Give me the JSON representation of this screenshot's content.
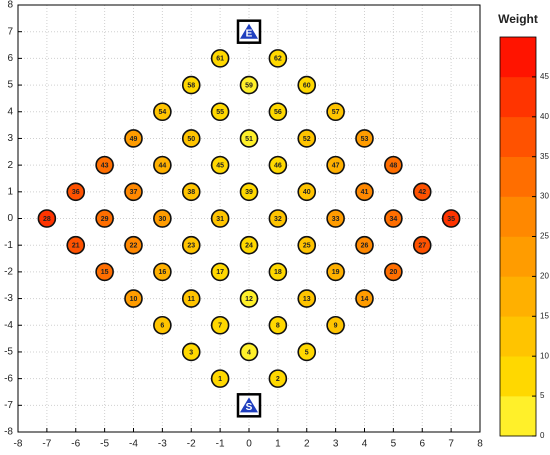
{
  "chart_data": {
    "type": "scatter",
    "xlim": [
      -8,
      8
    ],
    "ylim": [
      -8,
      8
    ],
    "xticks": [
      -8,
      -7,
      -6,
      -5,
      -4,
      -3,
      -2,
      -1,
      0,
      1,
      2,
      3,
      4,
      5,
      6,
      7,
      8
    ],
    "yticks": [
      -8,
      -7,
      -6,
      -5,
      -4,
      -3,
      -2,
      -1,
      0,
      1,
      2,
      3,
      4,
      5,
      6,
      7,
      8
    ],
    "grid": true,
    "nodes": [
      {
        "id": 1,
        "x": -1,
        "y": -6,
        "weight": 8
      },
      {
        "id": 2,
        "x": 1,
        "y": -6,
        "weight": 8
      },
      {
        "id": 3,
        "x": -2,
        "y": -5,
        "weight": 9
      },
      {
        "id": 4,
        "x": 0,
        "y": -5,
        "weight": 3
      },
      {
        "id": 5,
        "x": 2,
        "y": -5,
        "weight": 9
      },
      {
        "id": 6,
        "x": -3,
        "y": -4,
        "weight": 14
      },
      {
        "id": 7,
        "x": -1,
        "y": -4,
        "weight": 6
      },
      {
        "id": 8,
        "x": 1,
        "y": -4,
        "weight": 6
      },
      {
        "id": 9,
        "x": 3,
        "y": -4,
        "weight": 14
      },
      {
        "id": 10,
        "x": -4,
        "y": -3,
        "weight": 20
      },
      {
        "id": 11,
        "x": -2,
        "y": -3,
        "weight": 12
      },
      {
        "id": 12,
        "x": 0,
        "y": -3,
        "weight": 3
      },
      {
        "id": 13,
        "x": 2,
        "y": -3,
        "weight": 12
      },
      {
        "id": 14,
        "x": 4,
        "y": -3,
        "weight": 20
      },
      {
        "id": 15,
        "x": -5,
        "y": -2,
        "weight": 30
      },
      {
        "id": 16,
        "x": -3,
        "y": -2,
        "weight": 18
      },
      {
        "id": 17,
        "x": -1,
        "y": -2,
        "weight": 9
      },
      {
        "id": 18,
        "x": 1,
        "y": -2,
        "weight": 9
      },
      {
        "id": 19,
        "x": 3,
        "y": -2,
        "weight": 18
      },
      {
        "id": 20,
        "x": 5,
        "y": -2,
        "weight": 30
      },
      {
        "id": 21,
        "x": -6,
        "y": -1,
        "weight": 38
      },
      {
        "id": 22,
        "x": -4,
        "y": -1,
        "weight": 25
      },
      {
        "id": 23,
        "x": -2,
        "y": -1,
        "weight": 14
      },
      {
        "id": 24,
        "x": 0,
        "y": -1,
        "weight": 6
      },
      {
        "id": 25,
        "x": 2,
        "y": -1,
        "weight": 14
      },
      {
        "id": 26,
        "x": 4,
        "y": -1,
        "weight": 25
      },
      {
        "id": 27,
        "x": 6,
        "y": -1,
        "weight": 38
      },
      {
        "id": 28,
        "x": -7,
        "y": 0,
        "weight": 44
      },
      {
        "id": 29,
        "x": -5,
        "y": 0,
        "weight": 33
      },
      {
        "id": 30,
        "x": -3,
        "y": 0,
        "weight": 22
      },
      {
        "id": 31,
        "x": -1,
        "y": 0,
        "weight": 12
      },
      {
        "id": 32,
        "x": 1,
        "y": 0,
        "weight": 12
      },
      {
        "id": 33,
        "x": 3,
        "y": 0,
        "weight": 22
      },
      {
        "id": 34,
        "x": 5,
        "y": 0,
        "weight": 33
      },
      {
        "id": 35,
        "x": 7,
        "y": 0,
        "weight": 44
      },
      {
        "id": 36,
        "x": -6,
        "y": 1,
        "weight": 38
      },
      {
        "id": 37,
        "x": -4,
        "y": 1,
        "weight": 25
      },
      {
        "id": 38,
        "x": -2,
        "y": 1,
        "weight": 14
      },
      {
        "id": 39,
        "x": 0,
        "y": 1,
        "weight": 6
      },
      {
        "id": 40,
        "x": 2,
        "y": 1,
        "weight": 14
      },
      {
        "id": 41,
        "x": 4,
        "y": 1,
        "weight": 25
      },
      {
        "id": 42,
        "x": 6,
        "y": 1,
        "weight": 38
      },
      {
        "id": 43,
        "x": -5,
        "y": 2,
        "weight": 30
      },
      {
        "id": 44,
        "x": -3,
        "y": 2,
        "weight": 18
      },
      {
        "id": 45,
        "x": -1,
        "y": 2,
        "weight": 9
      },
      {
        "id": 46,
        "x": 1,
        "y": 2,
        "weight": 9
      },
      {
        "id": 47,
        "x": 3,
        "y": 2,
        "weight": 18
      },
      {
        "id": 48,
        "x": 5,
        "y": 2,
        "weight": 30
      },
      {
        "id": 49,
        "x": -4,
        "y": 3,
        "weight": 20
      },
      {
        "id": 50,
        "x": -2,
        "y": 3,
        "weight": 12
      },
      {
        "id": 51,
        "x": 0,
        "y": 3,
        "weight": 3
      },
      {
        "id": 52,
        "x": 2,
        "y": 3,
        "weight": 12
      },
      {
        "id": 53,
        "x": 4,
        "y": 3,
        "weight": 20
      },
      {
        "id": 54,
        "x": -3,
        "y": 4,
        "weight": 14
      },
      {
        "id": 55,
        "x": -1,
        "y": 4,
        "weight": 6
      },
      {
        "id": 56,
        "x": 1,
        "y": 4,
        "weight": 6
      },
      {
        "id": 57,
        "x": 3,
        "y": 4,
        "weight": 14
      },
      {
        "id": 58,
        "x": -2,
        "y": 5,
        "weight": 9
      },
      {
        "id": 59,
        "x": 0,
        "y": 5,
        "weight": 3
      },
      {
        "id": 60,
        "x": 2,
        "y": 5,
        "weight": 9
      },
      {
        "id": 61,
        "x": -1,
        "y": 6,
        "weight": 8
      },
      {
        "id": 62,
        "x": 1,
        "y": 6,
        "weight": 8
      }
    ],
    "markers": [
      {
        "label": "E",
        "x": 0,
        "y": 7
      },
      {
        "label": "S",
        "x": 0,
        "y": -7
      }
    ],
    "colorbar": {
      "title": "Weight",
      "lim": [
        0,
        50
      ],
      "ticks": [
        0,
        5,
        10,
        15,
        20,
        25,
        30,
        35,
        40,
        45
      ],
      "colors": [
        "#fff02a",
        "#ffd800",
        "#ffc400",
        "#ffb000",
        "#ff9c00",
        "#ff8800",
        "#ff6e00",
        "#ff5200",
        "#ff3400",
        "#ff1400"
      ]
    }
  }
}
